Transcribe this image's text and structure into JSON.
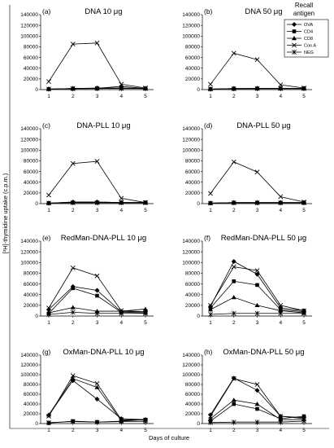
{
  "figure": {
    "ylabel": "[³H]-thymidine uptake (c.p.m.)",
    "xlabel": "Days of culture",
    "legend_title_line1": "Recall",
    "legend_title_line2": "antigen",
    "series_names": [
      "OVA",
      "CD4",
      "CD8",
      "Con A",
      "NEG"
    ]
  },
  "chart_data": [
    {
      "type": "line",
      "panel": "(a)",
      "title": "DNA 10 μg",
      "x": [
        1,
        2,
        3,
        4,
        5
      ],
      "ylim": [
        0,
        140000
      ],
      "yticks": [
        "0",
        "20000",
        "40000",
        "60000",
        "80000",
        "100000",
        "120000",
        "140000"
      ],
      "xticks": [
        "1",
        "2",
        "3",
        "4",
        "5"
      ],
      "series": [
        {
          "name": "OVA",
          "values": [
            1000,
            2000,
            3000,
            3000,
            2000
          ]
        },
        {
          "name": "CD4",
          "values": [
            1000,
            1500,
            2000,
            2500,
            2000
          ]
        },
        {
          "name": "CD8",
          "values": [
            1000,
            2000,
            2500,
            6000,
            2000
          ]
        },
        {
          "name": "Con A",
          "values": [
            15000,
            85000,
            87000,
            10000,
            3000
          ]
        },
        {
          "name": "NEG",
          "values": [
            1000,
            2000,
            2000,
            2000,
            2000
          ]
        }
      ]
    },
    {
      "type": "line",
      "panel": "(b)",
      "title": "DNA 50 μg",
      "x": [
        1,
        2,
        3,
        4,
        5
      ],
      "ylim": [
        0,
        140000
      ],
      "yticks": [
        "0",
        "20000",
        "40000",
        "60000",
        "80000",
        "100000",
        "120000",
        "140000"
      ],
      "xticks": [
        "1",
        "2",
        "3",
        "4",
        "5"
      ],
      "series": [
        {
          "name": "OVA",
          "values": [
            1000,
            2000,
            2000,
            2000,
            2000
          ]
        },
        {
          "name": "CD4",
          "values": [
            1000,
            1500,
            2000,
            2000,
            2000
          ]
        },
        {
          "name": "CD8",
          "values": [
            1000,
            2000,
            2000,
            2000,
            2000
          ]
        },
        {
          "name": "Con A",
          "values": [
            10000,
            68000,
            56000,
            9000,
            3000
          ]
        },
        {
          "name": "NEG",
          "values": [
            1000,
            1500,
            2000,
            2000,
            2000
          ]
        }
      ]
    },
    {
      "type": "line",
      "panel": "(c)",
      "title": "DNA-PLL 10 μg",
      "x": [
        1,
        2,
        3,
        4,
        5
      ],
      "ylim": [
        0,
        140000
      ],
      "yticks": [
        "0",
        "20000",
        "40000",
        "60000",
        "80000",
        "100000",
        "120000",
        "140000"
      ],
      "xticks": [
        "1",
        "2",
        "3",
        "4",
        "5"
      ],
      "series": [
        {
          "name": "OVA",
          "values": [
            1000,
            3000,
            3000,
            2000,
            2000
          ]
        },
        {
          "name": "CD4",
          "values": [
            1000,
            2000,
            2000,
            2000,
            2000
          ]
        },
        {
          "name": "CD8",
          "values": [
            1000,
            3000,
            3000,
            2000,
            2000
          ]
        },
        {
          "name": "Con A",
          "values": [
            16000,
            75000,
            79000,
            10000,
            2000
          ]
        },
        {
          "name": "NEG",
          "values": [
            1000,
            1500,
            1500,
            1500,
            1500
          ]
        }
      ]
    },
    {
      "type": "line",
      "panel": "(d)",
      "title": "DNA-PLL 50 μg",
      "x": [
        1,
        2,
        3,
        4,
        5
      ],
      "ylim": [
        0,
        140000
      ],
      "yticks": [
        "0",
        "20000",
        "40000",
        "60000",
        "80000",
        "100000",
        "120000",
        "140000"
      ],
      "xticks": [
        "1",
        "2",
        "3",
        "4",
        "5"
      ],
      "series": [
        {
          "name": "OVA",
          "values": [
            1000,
            2000,
            2000,
            2000,
            2000
          ]
        },
        {
          "name": "CD4",
          "values": [
            1000,
            1500,
            1500,
            1500,
            1500
          ]
        },
        {
          "name": "CD8",
          "values": [
            1000,
            2000,
            2000,
            2000,
            2000
          ]
        },
        {
          "name": "Con A",
          "values": [
            19000,
            78000,
            59000,
            13000,
            3000
          ]
        },
        {
          "name": "NEG",
          "values": [
            1000,
            1500,
            1500,
            1500,
            1500
          ]
        }
      ]
    },
    {
      "type": "line",
      "panel": "(e)",
      "title": "RedMan-DNA-PLL 10 μg",
      "x": [
        1,
        2,
        3,
        4,
        5
      ],
      "ylim": [
        0,
        140000
      ],
      "yticks": [
        "0",
        "20000",
        "40000",
        "60000",
        "80000",
        "100000",
        "120000",
        "140000"
      ],
      "xticks": [
        "1",
        "2",
        "3",
        "4",
        "5"
      ],
      "series": [
        {
          "name": "OVA",
          "values": [
            12000,
            55000,
            48000,
            8000,
            8000
          ]
        },
        {
          "name": "CD4",
          "values": [
            5000,
            52000,
            38000,
            7000,
            6000
          ]
        },
        {
          "name": "CD8",
          "values": [
            6000,
            16000,
            9000,
            9000,
            13000
          ]
        },
        {
          "name": "Con A",
          "values": [
            15000,
            90000,
            75000,
            10000,
            8000
          ]
        },
        {
          "name": "NEG",
          "values": [
            3000,
            7000,
            5000,
            5000,
            5000
          ]
        }
      ]
    },
    {
      "type": "line",
      "panel": "(f)",
      "title": "RedMan-DNA-PLL 50 μg",
      "x": [
        1,
        2,
        3,
        4,
        5
      ],
      "ylim": [
        0,
        140000
      ],
      "yticks": [
        "0",
        "20000",
        "40000",
        "60000",
        "80000",
        "100000",
        "120000",
        "140000"
      ],
      "xticks": [
        "1",
        "2",
        "3",
        "4",
        "5"
      ],
      "series": [
        {
          "name": "OVA",
          "values": [
            18000,
            102000,
            78000,
            15000,
            10000
          ]
        },
        {
          "name": "CD4",
          "values": [
            15000,
            65000,
            58000,
            12000,
            8000
          ]
        },
        {
          "name": "CD8",
          "values": [
            12000,
            35000,
            20000,
            10000,
            6000
          ]
        },
        {
          "name": "Con A",
          "values": [
            20000,
            92000,
            85000,
            20000,
            10000
          ]
        },
        {
          "name": "NEG",
          "values": [
            3000,
            5000,
            5000,
            5000,
            5000
          ]
        }
      ]
    },
    {
      "type": "line",
      "panel": "(g)",
      "title": "OxMan-DNA-PLL 10 μg",
      "x": [
        1,
        2,
        3,
        4,
        5
      ],
      "ylim": [
        0,
        140000
      ],
      "yticks": [
        "0",
        "20000",
        "40000",
        "60000",
        "80000",
        "100000",
        "120000",
        "140000"
      ],
      "xticks": [
        "1",
        "2",
        "3",
        "4",
        "5"
      ],
      "series": [
        {
          "name": "OVA",
          "values": [
            17000,
            88000,
            50000,
            10000,
            8000
          ]
        },
        {
          "name": "CD4",
          "values": [
            1000,
            5000,
            3000,
            5000,
            8000
          ]
        },
        {
          "name": "CD8",
          "values": [
            18000,
            92000,
            74000,
            6000,
            8000
          ]
        },
        {
          "name": "Con A",
          "values": [
            15000,
            98000,
            82000,
            8000,
            7000
          ]
        },
        {
          "name": "NEG",
          "values": [
            2000,
            4000,
            3000,
            4000,
            4000
          ]
        }
      ]
    },
    {
      "type": "line",
      "panel": "(h)",
      "title": "OxMan-DNA-PLL 50 μg",
      "x": [
        1,
        2,
        3,
        4,
        5
      ],
      "ylim": [
        0,
        140000
      ],
      "yticks": [
        "0",
        "20000",
        "40000",
        "60000",
        "80000",
        "100000",
        "120000",
        "140000"
      ],
      "xticks": [
        "1",
        "2",
        "3",
        "4",
        "5"
      ],
      "series": [
        {
          "name": "OVA",
          "values": [
            18000,
            93000,
            68000,
            15000,
            12000
          ]
        },
        {
          "name": "CD4",
          "values": [
            5000,
            40000,
            30000,
            10000,
            15000
          ]
        },
        {
          "name": "CD8",
          "values": [
            10000,
            48000,
            40000,
            8000,
            8000
          ]
        },
        {
          "name": "Con A",
          "values": [
            15000,
            92000,
            80000,
            15000,
            10000
          ]
        },
        {
          "name": "NEG",
          "values": [
            2000,
            3000,
            3000,
            3000,
            5000
          ]
        }
      ]
    }
  ]
}
